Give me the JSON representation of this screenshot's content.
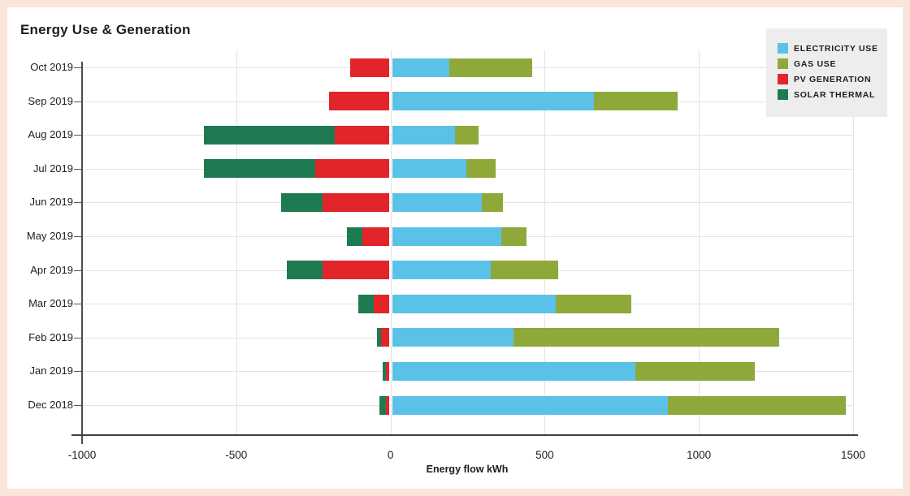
{
  "chart_data": {
    "type": "bar",
    "orientation": "horizontal_stacked_diverging",
    "title": "Energy Use & Generation",
    "xlabel": "Energy flow kWh",
    "xlim": [
      -1000,
      1500
    ],
    "xticks": [
      -1000,
      -500,
      0,
      500,
      1000,
      1500
    ],
    "xtick_labels": [
      "-1000",
      "-500",
      "0",
      "500",
      "1000",
      "1500"
    ],
    "grid": true,
    "legend_position": "top-right",
    "categories": [
      "Oct 2019",
      "Sep 2019",
      "Aug 2019",
      "Jul 2019",
      "Jun 2019",
      "May 2019",
      "Apr 2019",
      "Mar 2019",
      "Feb 2019",
      "Jan 2019",
      "Dec 2018"
    ],
    "series": [
      {
        "key": "electricity",
        "name": "ELECTRICITY USE",
        "color": "#5bc2e7",
        "values": [
          190,
          660,
          210,
          245,
          295,
          360,
          325,
          535,
          400,
          795,
          900
        ]
      },
      {
        "key": "gas",
        "name": "GAS USE",
        "color": "#8ea93a",
        "values": [
          270,
          270,
          75,
          95,
          70,
          80,
          220,
          245,
          860,
          385,
          575
        ]
      },
      {
        "key": "pv",
        "name": "PV GENERATION",
        "color": "#e2242b",
        "values": [
          -130,
          -200,
          -180,
          -245,
          -220,
          -90,
          -220,
          -55,
          -30,
          -15,
          -15
        ]
      },
      {
        "key": "solar_thermal",
        "name": "SOLAR THERMAL",
        "color": "#1e7b51",
        "values": [
          0,
          0,
          -425,
          -360,
          -135,
          -50,
          -115,
          -50,
          -15,
          -10,
          -20
        ]
      }
    ]
  },
  "colors": {
    "frame_border": "#fae4dc",
    "panel": "#ffffff",
    "gridline": "#e3e3e3",
    "axis": "#3f3f3f",
    "text": "#1d1d1b",
    "legend_background": "#ededed"
  }
}
